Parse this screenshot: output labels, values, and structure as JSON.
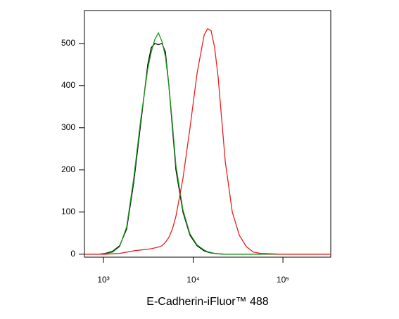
{
  "chart_data": {
    "type": "line",
    "x_label": "E-Cadherin-iFluor™ 488",
    "x": [
      614,
      881,
      1056,
      1265,
      1515,
      1815,
      2174,
      2605,
      3120,
      3415,
      3740,
      4095,
      4480,
      4900,
      5360,
      5870,
      6425,
      7695,
      9220,
      11050,
      13240,
      14500,
      15850,
      17340,
      18980,
      22750,
      27250,
      32650,
      39100,
      46850,
      56100,
      96400,
      341000
    ],
    "series": [
      {
        "color": "#000000",
        "values": [
          0,
          0,
          2,
          7,
          20,
          60,
          170,
          310,
          450,
          490,
          500,
          497,
          500,
          480,
          400,
          300,
          200,
          100,
          45,
          20,
          8,
          5,
          3,
          2,
          1,
          0,
          0,
          0,
          0,
          0,
          0,
          0,
          0
        ]
      },
      {
        "color": "#1a9a1a",
        "values": [
          0,
          0,
          1,
          5,
          18,
          65,
          180,
          320,
          440,
          480,
          510,
          525,
          505,
          470,
          400,
          310,
          210,
          105,
          48,
          22,
          10,
          6,
          4,
          2,
          1,
          0,
          0,
          0,
          0,
          0,
          0,
          0,
          0
        ]
      },
      {
        "color": "#e8201c",
        "values": [
          0,
          0,
          0,
          1,
          2,
          5,
          8,
          10,
          12,
          13,
          15,
          17,
          20,
          28,
          40,
          60,
          90,
          180,
          300,
          430,
          520,
          535,
          530,
          490,
          420,
          220,
          100,
          45,
          18,
          5,
          2,
          0,
          0
        ]
      }
    ],
    "xlim": [
      614,
      341000
    ],
    "x_log": true,
    "xticks": [
      {
        "value": 1000,
        "label": "10³"
      },
      {
        "value": 10000,
        "label": "10⁴"
      },
      {
        "value": 100000,
        "label": "10⁵"
      }
    ],
    "ylim": [
      -7,
      578
    ],
    "yticks": [
      0,
      100,
      200,
      300,
      400,
      500
    ]
  }
}
